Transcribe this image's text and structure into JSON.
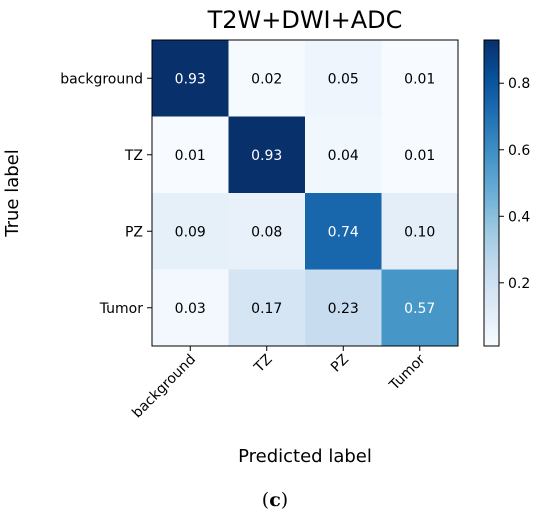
{
  "caption": {
    "prefix": "(",
    "letter": "c",
    "suffix": ")"
  },
  "chart_data": {
    "type": "heatmap",
    "title": "T2W+DWI+ADC",
    "xlabel": "Predicted label",
    "ylabel": "True label",
    "x_categories": [
      "background",
      "TZ",
      "PZ",
      "Tumor"
    ],
    "y_categories": [
      "background",
      "TZ",
      "PZ",
      "Tumor"
    ],
    "values": [
      [
        0.93,
        0.02,
        0.05,
        0.01
      ],
      [
        0.01,
        0.93,
        0.04,
        0.01
      ],
      [
        0.09,
        0.08,
        0.74,
        0.1
      ],
      [
        0.03,
        0.17,
        0.23,
        0.57
      ]
    ],
    "value_labels": [
      [
        "0.93",
        "0.02",
        "0.05",
        "0.01"
      ],
      [
        "0.01",
        "0.93",
        "0.04",
        "0.01"
      ],
      [
        "0.09",
        "0.08",
        "0.74",
        "0.10"
      ],
      [
        "0.03",
        "0.17",
        "0.23",
        "0.57"
      ]
    ],
    "colormap": "Blues",
    "colormap_stops": [
      "#f7fbff",
      "#deebf7",
      "#c6dbef",
      "#9ecae1",
      "#6baed6",
      "#4292c6",
      "#2171b5",
      "#08519c",
      "#08306b"
    ],
    "color_range": [
      0.01,
      0.93
    ],
    "colorbar": {
      "ticks": [
        0.2,
        0.4,
        0.6,
        0.8
      ],
      "tick_labels": [
        "0.2",
        "0.4",
        "0.6",
        "0.8"
      ]
    },
    "grid": false
  }
}
